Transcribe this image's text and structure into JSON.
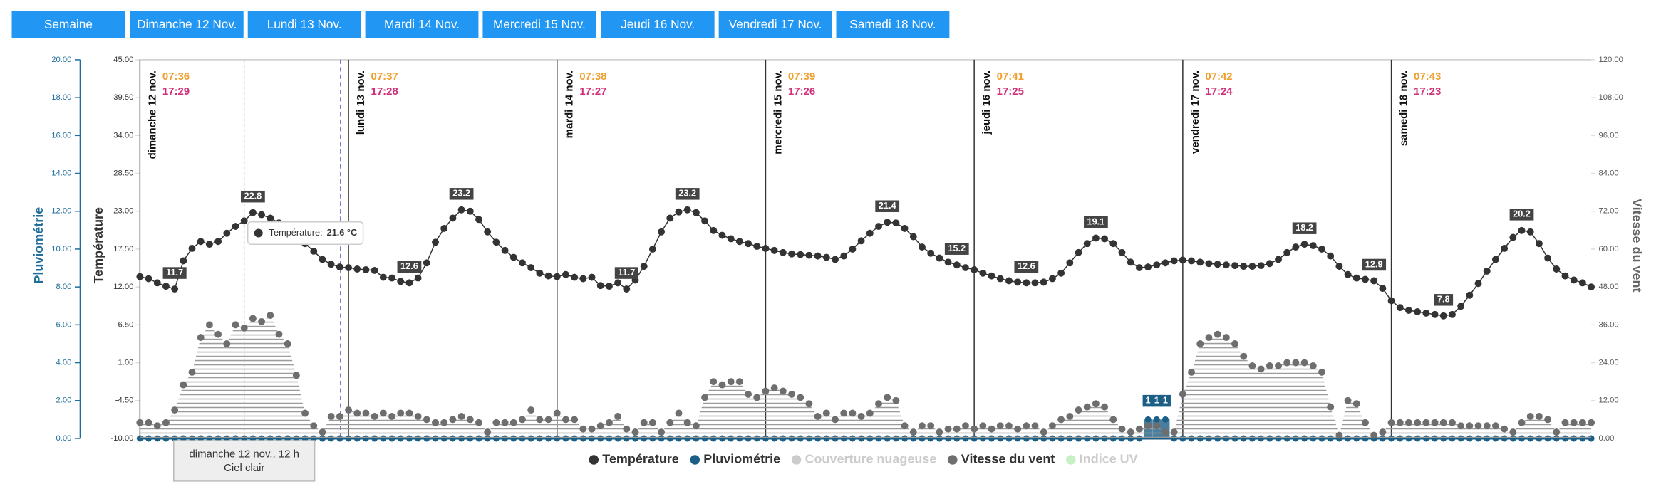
{
  "tabs": [
    "Semaine",
    "Dimanche 12 Nov.",
    "Lundi 13 Nov.",
    "Mardi 14 Nov.",
    "Mercredi 15 Nov.",
    "Jeudi 16 Nov.",
    "Vendredi 17 Nov.",
    "Samedi 18 Nov."
  ],
  "chart_data": {
    "type": "line",
    "ylabel": "Température",
    "y2label": "Vitesse du vent",
    "y3label": "Pluviométrie",
    "ylim": [
      -10,
      45
    ],
    "yticks": [
      {
        "value": -10,
        "label": "-10.00"
      },
      {
        "value": -4.5,
        "label": "-4.50"
      },
      {
        "value": 1,
        "label": "1.00"
      },
      {
        "value": 6.5,
        "label": "6.50"
      },
      {
        "value": 12,
        "label": "12.00"
      },
      {
        "value": 17.5,
        "label": "17.50"
      },
      {
        "value": 23,
        "label": "23.00"
      },
      {
        "value": 28.5,
        "label": "28.50"
      },
      {
        "value": 34,
        "label": "34.00"
      },
      {
        "value": 39.5,
        "label": "39.50"
      },
      {
        "value": 45,
        "label": "45.00"
      }
    ],
    "y2lim": [
      0,
      120
    ],
    "y2ticks": [
      {
        "value": 0,
        "label": "0.00"
      },
      {
        "value": 12,
        "label": "12.00"
      },
      {
        "value": 24,
        "label": "24.00"
      },
      {
        "value": 36,
        "label": "36.00"
      },
      {
        "value": 48,
        "label": "48.00"
      },
      {
        "value": 60,
        "label": "60.00"
      },
      {
        "value": 72,
        "label": "72.00"
      },
      {
        "value": 84,
        "label": "84.00"
      },
      {
        "value": 96,
        "label": "96.00"
      },
      {
        "value": 108,
        "label": "108.00"
      },
      {
        "value": 120,
        "label": "120.00"
      }
    ],
    "y3lim": [
      0,
      20
    ],
    "y3ticks": [
      {
        "value": 0,
        "label": "0.00"
      },
      {
        "value": 2,
        "label": "2.00"
      },
      {
        "value": 4,
        "label": "4.00"
      },
      {
        "value": 6,
        "label": "6.00"
      },
      {
        "value": 8,
        "label": "8.00"
      },
      {
        "value": 10,
        "label": "10.00"
      },
      {
        "value": 12,
        "label": "12.00"
      },
      {
        "value": 14,
        "label": "14.00"
      },
      {
        "value": 16,
        "label": "16.00"
      },
      {
        "value": 18,
        "label": "18.00"
      },
      {
        "value": 20,
        "label": "20.00"
      }
    ],
    "days": [
      {
        "label": "dimanche 12 nov.",
        "sunrise": "07:36",
        "sunset": "17:29"
      },
      {
        "label": "lundi 13 nov.",
        "sunrise": "07:37",
        "sunset": "17:28"
      },
      {
        "label": "mardi 14 nov.",
        "sunrise": "07:38",
        "sunset": "17:27"
      },
      {
        "label": "mercredi 15 nov.",
        "sunrise": "07:39",
        "sunset": "17:26"
      },
      {
        "label": "jeudi 16 nov.",
        "sunrise": "07:41",
        "sunset": "17:25"
      },
      {
        "label": "vendredi 17 nov.",
        "sunrise": "07:42",
        "sunset": "17:24"
      },
      {
        "label": "samedi 18 nov.",
        "sunrise": "07:43",
        "sunset": "17:23"
      }
    ],
    "series": [
      {
        "name": "Température",
        "color": "#333333",
        "values": [
          13.5,
          13.2,
          12.6,
          12.1,
          11.7,
          15.8,
          17.6,
          18.6,
          18.2,
          18.6,
          19.8,
          20.8,
          21.6,
          22.8,
          22.5,
          22.0,
          21.3,
          20.5,
          19.5,
          18.3,
          17.2,
          16.0,
          15.3,
          14.9,
          14.8,
          14.6,
          14.5,
          14.4,
          13.4,
          13.3,
          12.8,
          12.6,
          13.3,
          15.5,
          18.5,
          20.5,
          22.0,
          23.2,
          23.0,
          21.8,
          20.0,
          18.5,
          17.3,
          16.3,
          15.5,
          14.8,
          14.0,
          13.6,
          13.5,
          13.8,
          13.4,
          13.2,
          13.4,
          12.2,
          12.1,
          12.6,
          11.7,
          13.0,
          15.0,
          17.5,
          20.0,
          22.0,
          22.9,
          23.2,
          22.8,
          21.6,
          20.2,
          19.5,
          19.0,
          18.6,
          18.3,
          17.9,
          17.6,
          17.3,
          17.0,
          16.8,
          16.7,
          16.6,
          16.5,
          16.3,
          16.0,
          16.5,
          17.5,
          18.7,
          19.8,
          20.8,
          21.4,
          21.3,
          20.5,
          19.3,
          17.8,
          16.9,
          16.2,
          15.6,
          15.2,
          14.8,
          14.5,
          14.0,
          13.6,
          13.2,
          12.9,
          12.7,
          12.6,
          12.6,
          12.7,
          13.2,
          14.0,
          15.5,
          17.0,
          18.3,
          19.1,
          19.0,
          18.3,
          17.0,
          15.6,
          14.8,
          14.9,
          15.2,
          15.5,
          15.8,
          15.9,
          15.8,
          15.6,
          15.4,
          15.3,
          15.2,
          15.1,
          15.0,
          15.0,
          15.1,
          15.4,
          16.0,
          17.0,
          17.8,
          18.2,
          18.0,
          17.5,
          16.5,
          15.0,
          13.8,
          13.3,
          13.1,
          12.9,
          11.8,
          10.0,
          9.0,
          8.6,
          8.4,
          8.2,
          8.0,
          7.8,
          8.0,
          9.2,
          10.8,
          12.5,
          14.3,
          16.0,
          17.6,
          19.2,
          20.2,
          20.0,
          18.3,
          16.2,
          14.6,
          13.6,
          13.0,
          12.6,
          12.0
        ],
        "value_labels": [
          null,
          null,
          null,
          null,
          "11.7",
          null,
          null,
          null,
          null,
          null,
          null,
          null,
          null,
          "22.8",
          null,
          null,
          null,
          null,
          null,
          null,
          null,
          null,
          null,
          null,
          null,
          null,
          null,
          null,
          null,
          null,
          null,
          "12.6",
          null,
          null,
          null,
          null,
          null,
          "23.2",
          null,
          null,
          null,
          null,
          null,
          null,
          null,
          null,
          null,
          null,
          null,
          null,
          null,
          null,
          null,
          null,
          null,
          null,
          "11.7",
          null,
          null,
          null,
          null,
          null,
          null,
          "23.2",
          null,
          null,
          null,
          null,
          null,
          null,
          null,
          null,
          null,
          null,
          null,
          null,
          null,
          null,
          null,
          null,
          null,
          null,
          null,
          null,
          null,
          null,
          "21.4",
          null,
          null,
          null,
          null,
          null,
          null,
          null,
          "15.2",
          null,
          null,
          null,
          null,
          null,
          null,
          null,
          "12.6",
          null,
          null,
          null,
          null,
          null,
          null,
          null,
          "19.1",
          null,
          null,
          null,
          null,
          null,
          null,
          null,
          null,
          null,
          null,
          null,
          null,
          null,
          null,
          null,
          null,
          null,
          null,
          null,
          null,
          null,
          null,
          null,
          "18.2",
          null,
          null,
          null,
          null,
          null,
          null,
          null,
          "12.9",
          null,
          null,
          null,
          null,
          null,
          null,
          null,
          "7.8",
          null,
          null,
          null,
          null,
          null,
          null,
          null,
          null,
          "20.2",
          null,
          null,
          null,
          null,
          null,
          null,
          null,
          null
        ]
      },
      {
        "name": "Pluviométrie",
        "color": "#1b5e86",
        "axis": "y3",
        "values": [
          0,
          0,
          0,
          0,
          0,
          0,
          0,
          0,
          0,
          0,
          0,
          0,
          0,
          0,
          0,
          0,
          0,
          0,
          0,
          0,
          0,
          0,
          0,
          0,
          0,
          0,
          0,
          0,
          0,
          0,
          0,
          0,
          0,
          0,
          0,
          0,
          0,
          0,
          0,
          0,
          0,
          0,
          0,
          0,
          0,
          0,
          0,
          0,
          0,
          0,
          0,
          0,
          0,
          0,
          0,
          0,
          0,
          0,
          0,
          0,
          0,
          0,
          0,
          0,
          0,
          0,
          0,
          0,
          0,
          0,
          0,
          0,
          0,
          0,
          0,
          0,
          0,
          0,
          0,
          0,
          0,
          0,
          0,
          0,
          0,
          0,
          0,
          0,
          0,
          0,
          0,
          0,
          0,
          0,
          0,
          0,
          0,
          0,
          0,
          0,
          0,
          0,
          0,
          0,
          0,
          0,
          0,
          0,
          0,
          0,
          0,
          0,
          0,
          0,
          0,
          0,
          1,
          1,
          1,
          0,
          0,
          0,
          0,
          0,
          0,
          0,
          0,
          0,
          0,
          0,
          0,
          0,
          0,
          0,
          0,
          0,
          0,
          0,
          0,
          0,
          0,
          0,
          0,
          0,
          0,
          0,
          0,
          0,
          0,
          0,
          0,
          0,
          0,
          0,
          0,
          0,
          0,
          0,
          0,
          0,
          0,
          0,
          0,
          0,
          0,
          0,
          0,
          0
        ]
      },
      {
        "name": "Couverture nuageuse",
        "color": "#cccccc",
        "visible": false
      },
      {
        "name": "Vitesse du vent",
        "color": "#6e6e6e",
        "axis": "y2",
        "values": [
          5,
          5,
          4,
          5,
          9,
          17,
          21,
          32,
          36,
          33,
          30,
          36,
          35,
          38,
          37,
          39,
          33,
          30,
          20,
          8,
          4,
          2,
          7,
          7,
          9,
          8,
          8,
          7,
          8,
          7,
          8,
          8,
          7,
          6,
          5,
          5,
          6,
          7,
          6,
          5,
          2,
          5,
          5,
          5,
          6,
          9,
          6,
          6,
          8,
          6,
          6,
          3,
          3,
          4,
          5,
          7,
          3,
          2,
          5,
          5,
          2,
          5,
          8,
          5,
          4,
          13,
          18,
          17,
          18,
          18,
          14,
          13,
          15,
          16,
          15,
          14,
          13,
          11,
          7,
          8,
          6,
          8,
          8,
          7,
          8,
          11,
          13,
          12,
          4,
          2,
          4,
          4,
          2,
          3,
          3,
          4,
          3,
          4,
          3,
          4,
          4,
          3,
          4,
          4,
          2,
          4,
          6,
          7,
          9,
          10,
          11,
          10,
          6,
          3,
          2,
          3,
          4,
          4,
          2,
          2,
          14,
          21,
          30,
          32,
          33,
          32,
          30,
          26,
          23,
          22,
          23,
          23,
          24,
          24,
          24,
          23,
          21,
          10,
          1,
          12,
          11,
          5,
          1,
          2,
          5,
          5,
          5,
          5,
          5,
          5,
          5,
          5,
          4,
          4,
          4,
          4,
          4,
          3,
          2,
          5,
          7,
          7,
          6,
          2,
          5,
          5,
          5,
          5
        ]
      },
      {
        "name": "Indice UV",
        "color": "#c6f0c6",
        "visible": false
      }
    ],
    "tooltip": {
      "title": "dimanche 12 nov., 12 h",
      "text": "Ciel clair"
    },
    "hover_tooltip": {
      "label": "Température:",
      "value": "21.6 °C"
    }
  }
}
